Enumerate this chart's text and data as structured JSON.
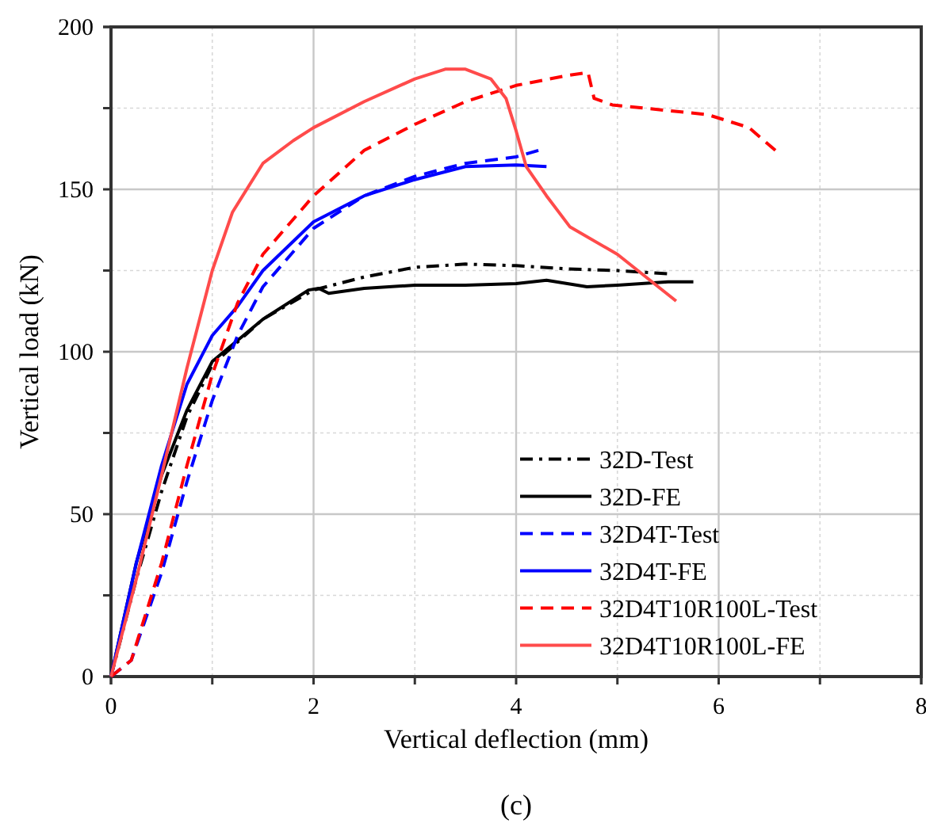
{
  "chart_data": {
    "type": "line",
    "xlabel": "Vertical deflection (mm)",
    "ylabel": "Vertical load  (kN)",
    "annotations": [
      "(c)"
    ],
    "xlim": [
      0,
      8
    ],
    "ylim": [
      0,
      200
    ],
    "xticks": [
      0,
      {
        "value": 1,
        "label": null
      },
      2,
      {
        "value": 3,
        "label": null
      },
      4,
      {
        "value": 5,
        "label": null
      },
      6,
      {
        "value": 7,
        "label": null
      },
      8
    ],
    "yticks": [
      0,
      {
        "value": 25,
        "label": null
      },
      50,
      {
        "value": 75,
        "label": null
      },
      100,
      {
        "value": 125,
        "label": null
      },
      150,
      {
        "value": 175,
        "label": null
      },
      200
    ],
    "grid": true,
    "legend": "bottom right",
    "marker": "none",
    "series": [
      {
        "name": "32D-Test",
        "color": "#000000",
        "line_style": "dashdot",
        "x": [
          0,
          0.25,
          0.5,
          0.75,
          1.0,
          1.5,
          2.0,
          2.5,
          3.0,
          3.5,
          4.0,
          4.5,
          5.0,
          5.49
        ],
        "values": [
          0,
          30,
          57,
          80,
          96,
          110,
          119,
          123,
          126,
          127,
          126.5,
          125.5,
          125,
          124
        ]
      },
      {
        "name": "32D-FE",
        "color": "#000000",
        "line_style": "solid",
        "x": [
          0,
          0.25,
          0.5,
          0.75,
          1.0,
          1.5,
          1.95,
          2.05,
          2.15,
          2.5,
          3.0,
          3.5,
          4.0,
          4.3,
          4.7,
          5.0,
          5.5,
          5.75
        ],
        "values": [
          0,
          35,
          62,
          82,
          97,
          110,
          119,
          119.5,
          118,
          119.5,
          120.5,
          120.5,
          121,
          122,
          120,
          120.5,
          121.5,
          121.5
        ]
      },
      {
        "name": "32D4T-Test",
        "color": "#0000ff",
        "line_style": "dashed",
        "x": [
          0,
          0.2,
          0.5,
          0.75,
          1.0,
          1.25,
          1.5,
          2.0,
          2.5,
          3.0,
          3.5,
          4.0,
          4.22
        ],
        "values": [
          0,
          5,
          32,
          60,
          85,
          105,
          120,
          138,
          148,
          154,
          158,
          160,
          162
        ]
      },
      {
        "name": "32D4T-FE",
        "color": "#0000ff",
        "line_style": "solid",
        "x": [
          0,
          0.25,
          0.5,
          0.75,
          1.0,
          1.25,
          1.5,
          2.0,
          2.5,
          3.0,
          3.5,
          4.0,
          4.3
        ],
        "values": [
          0,
          35,
          65,
          90,
          105,
          114,
          125,
          140,
          148,
          153,
          157,
          157.5,
          157
        ]
      },
      {
        "name": "32D4T10R100L-Test",
        "color": "#ff0000",
        "line_style": "dashed",
        "x": [
          0,
          0.2,
          0.5,
          0.75,
          1.0,
          1.25,
          1.5,
          2.0,
          2.5,
          3.0,
          3.5,
          4.0,
          4.5,
          4.71,
          4.77,
          4.95,
          5.89,
          6.3,
          6.56
        ],
        "values": [
          0,
          5,
          35,
          65,
          93,
          115,
          130,
          148,
          162,
          170,
          177,
          182,
          185,
          186,
          178,
          176,
          173,
          169,
          162
        ]
      },
      {
        "name": "32D4T10R100L-FE",
        "color": "#ff4b4b",
        "line_style": "solid",
        "x": [
          0,
          0.25,
          0.5,
          0.75,
          1.0,
          1.2,
          1.5,
          1.8,
          2.0,
          2.5,
          3.0,
          3.3,
          3.5,
          3.75,
          3.9,
          4.0,
          4.1,
          4.3,
          4.53,
          5.0,
          5.58
        ],
        "values": [
          0,
          30,
          62,
          95,
          125,
          143,
          158,
          165,
          169,
          177,
          184,
          187,
          187,
          184,
          178,
          168,
          157,
          148,
          138.5,
          130,
          115.6
        ]
      }
    ]
  }
}
